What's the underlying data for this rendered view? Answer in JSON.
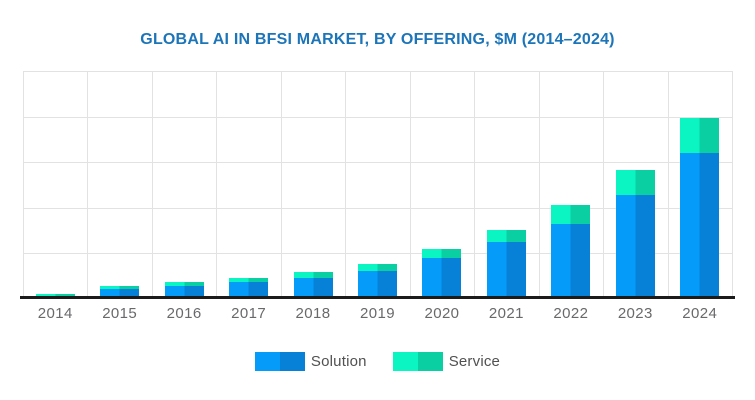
{
  "title": "GLOBAL AI IN BFSI MARKET, BY OFFERING, $M (2014–2024)",
  "colors": {
    "title": "#1C75B8",
    "solution_light": "#049CF8",
    "solution_dark": "#0781D8",
    "service_light": "#0BF5C3",
    "service_dark": "#09CFA2",
    "gridline": "#E2E2E2",
    "axis_line": "#1B1B1B",
    "tick_label": "#69696C",
    "legend_text": "#515151",
    "background": "#FFFFFF"
  },
  "legend": {
    "items": [
      {
        "label": "Solution",
        "swatch": "solution"
      },
      {
        "label": "Service",
        "swatch": "service"
      }
    ]
  },
  "chart_data": {
    "type": "bar",
    "stacked": true,
    "title": "GLOBAL AI IN BFSI MARKET, BY OFFERING, $M (2014–2024)",
    "xlabel": "",
    "ylabel": "",
    "categories": [
      "2014",
      "2015",
      "2016",
      "2017",
      "2018",
      "2019",
      "2020",
      "2021",
      "2022",
      "2023",
      "2024"
    ],
    "series": [
      {
        "name": "Solution",
        "color_light": "#049CF8",
        "color_dark": "#0781D8",
        "values": [
          70,
          220,
          280,
          375,
          450,
          615,
          905,
          1240,
          1645,
          2290,
          3200
        ]
      },
      {
        "name": "Service",
        "color_light": "#0BF5C3",
        "color_dark": "#09CFA2",
        "values": [
          33,
          72,
          95,
          88,
          135,
          155,
          185,
          270,
          415,
          540,
          770
        ]
      }
    ],
    "ylim": [
      0,
      5000
    ],
    "y_gridline_interval": 1000,
    "y_axis_labels_visible": false,
    "vertical_gridlines": true,
    "grid": true,
    "legend_position": "bottom"
  }
}
